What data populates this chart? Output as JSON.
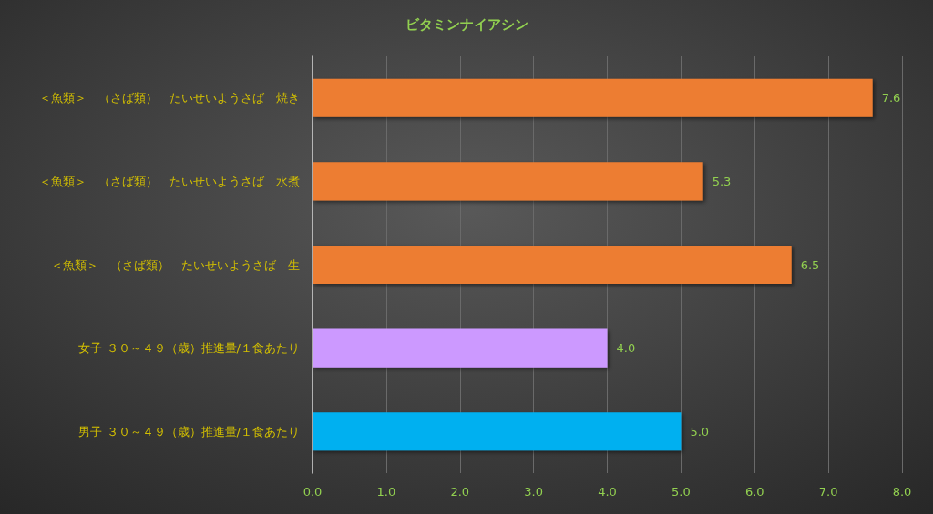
{
  "chart_data": {
    "type": "bar",
    "orientation": "horizontal",
    "title": "ビタミンナイアシン",
    "categories": [
      "＜魚類＞　（さば類）　たいせいようさば　焼き",
      "＜魚類＞　（さば類）　たいせいようさば　水煮",
      "＜魚類＞　（さば類）　たいせいようさば　生",
      "女子 ３０～４９（歳）推進量/１食あたり",
      "男子 ３０～４９（歳）推進量/１食あたり"
    ],
    "values": [
      7.6,
      5.3,
      6.5,
      4.0,
      5.0
    ],
    "colors": [
      "#ed7d31",
      "#ed7d31",
      "#ed7d31",
      "#cc99ff",
      "#00b0f0"
    ],
    "value_labels": [
      "7.6",
      "5.3",
      "6.5",
      "4.0",
      "5.0"
    ],
    "xlim": [
      0,
      8
    ],
    "xticks": [
      {
        "value": 0,
        "label": "0.0"
      },
      {
        "value": 1,
        "label": "1.0"
      },
      {
        "value": 2,
        "label": "2.0"
      },
      {
        "value": 3,
        "label": "3.0"
      },
      {
        "value": 4,
        "label": "4.0"
      },
      {
        "value": 5,
        "label": "5.0"
      },
      {
        "value": 6,
        "label": "6.0"
      },
      {
        "value": 7,
        "label": "7.0"
      },
      {
        "value": 8,
        "label": "8.0"
      }
    ],
    "grid": "x"
  }
}
